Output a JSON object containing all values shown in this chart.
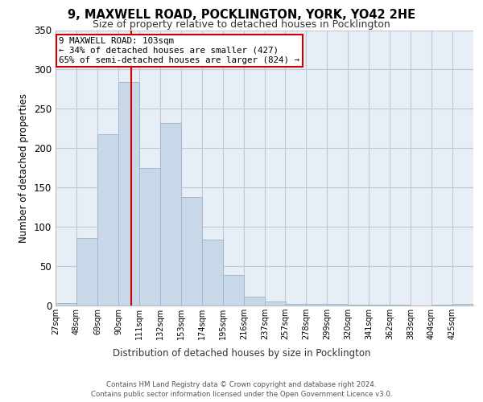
{
  "title1": "9, MAXWELL ROAD, POCKLINGTON, YORK, YO42 2HE",
  "title2": "Size of property relative to detached houses in Pocklington",
  "xlabel": "Distribution of detached houses by size in Pocklington",
  "ylabel": "Number of detached properties",
  "bin_edges": [
    27,
    48,
    69,
    90,
    111,
    132,
    153,
    174,
    195,
    216,
    237,
    257,
    278,
    299,
    320,
    341,
    362,
    383,
    404,
    425,
    446
  ],
  "bar_heights": [
    3,
    86,
    218,
    284,
    175,
    232,
    138,
    84,
    39,
    11,
    5,
    2,
    2,
    2,
    1,
    1,
    1,
    0,
    1,
    2
  ],
  "bar_color": "#c8d8e8",
  "bar_edgecolor": "#a0b8cc",
  "vline_x": 103,
  "vline_color": "#cc0000",
  "annotation_lines": [
    "9 MAXWELL ROAD: 103sqm",
    "← 34% of detached houses are smaller (427)",
    "65% of semi-detached houses are larger (824) →"
  ],
  "annotation_box_color": "#cc0000",
  "annotation_bg": "#ffffff",
  "ylim": [
    0,
    350
  ],
  "yticks": [
    0,
    50,
    100,
    150,
    200,
    250,
    300,
    350
  ],
  "grid_color": "#c0c8d8",
  "background_color": "#e8eef6",
  "footer_text": "Contains HM Land Registry data © Crown copyright and database right 2024.\nContains public sector information licensed under the Open Government Licence v3.0."
}
